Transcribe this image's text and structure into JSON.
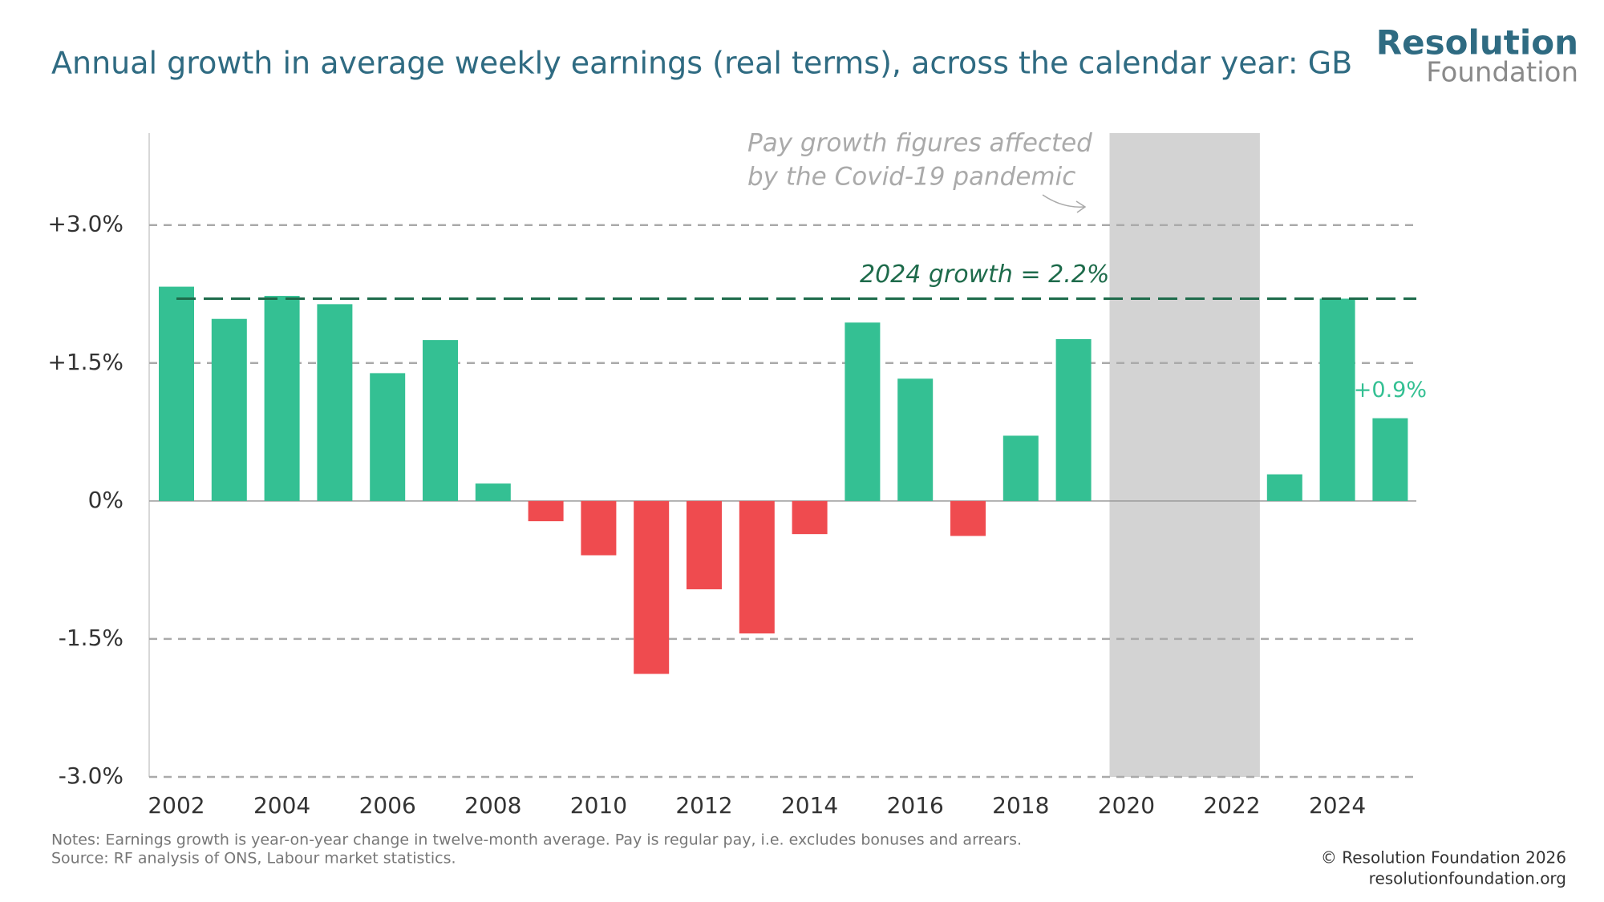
{
  "chart_data": {
    "type": "bar",
    "title": "Annual growth in average weekly earnings (real terms), across the calendar year: GB",
    "categories": [
      "2002",
      null,
      "2004",
      null,
      "2006",
      null,
      "2008",
      null,
      "2010",
      null,
      "2012",
      null,
      "2014",
      null,
      "2016",
      null,
      "2018",
      null,
      "2020",
      null,
      "2022",
      null,
      "2024",
      null
    ],
    "values": [
      2.33,
      1.98,
      2.23,
      2.14,
      1.39,
      1.75,
      0.19,
      -0.22,
      -0.59,
      -1.88,
      -0.96,
      -1.44,
      -0.36,
      1.94,
      1.33,
      -0.38,
      0.71,
      1.76,
      null,
      null,
      null,
      0.29,
      2.2,
      0.9
    ],
    "value_labels": [
      null,
      null,
      null,
      null,
      null,
      null,
      null,
      null,
      null,
      null,
      null,
      null,
      null,
      null,
      null,
      null,
      null,
      null,
      null,
      null,
      null,
      null,
      null,
      "+0.9%"
    ],
    "positive_color": "#34c093",
    "negative_color": "#ef4b4f",
    "ylim": [
      -3,
      4
    ],
    "yticks": [
      {
        "value": -3,
        "label": "-3.0%"
      },
      {
        "value": -1.5,
        "label": "-1.5%"
      },
      {
        "value": 0,
        "label": "0%"
      },
      {
        "value": 1.5,
        "label": "+1.5%"
      },
      {
        "value": 3,
        "label": "+3.0%"
      }
    ],
    "grid": true,
    "reference_line": {
      "value": 2.2,
      "label": "2024 growth = 2.2%",
      "color": "#1e6b4b"
    },
    "shaded_region": {
      "from": "2020",
      "to": "2022",
      "color": "#d3d3d3",
      "note": [
        "Pay growth figures affected",
        "by the Covid-19 pandemic"
      ]
    },
    "notes": "Notes: Earnings growth is year-on-year change in twelve-month average. Pay is regular pay, i.e. excludes bonuses and arrears.",
    "source": "Source: RF analysis of ONS, Labour market statistics.",
    "copyright": "© Resolution Foundation 2026",
    "website": "resolutionfoundation.org",
    "logo": [
      "Resolution",
      "Foundation"
    ]
  }
}
